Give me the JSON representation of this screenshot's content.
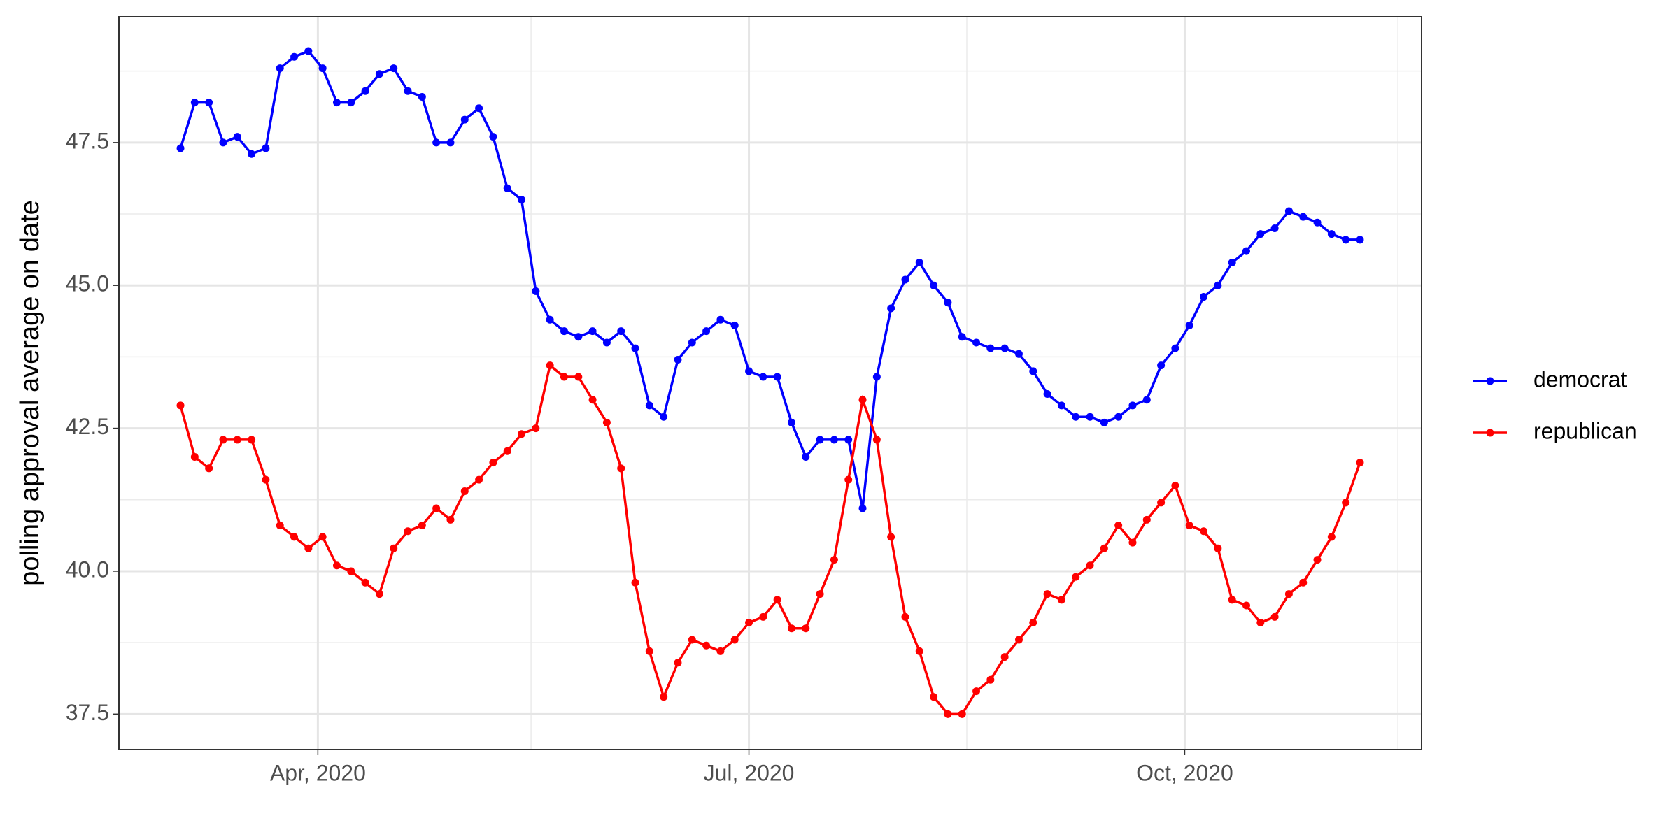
{
  "chart_data": {
    "type": "line",
    "ylabel": "polling approval average on date",
    "x": [
      "2020-03-03",
      "2020-03-06",
      "2020-03-09",
      "2020-03-12",
      "2020-03-15",
      "2020-03-18",
      "2020-03-21",
      "2020-03-24",
      "2020-03-27",
      "2020-03-30",
      "2020-04-02",
      "2020-04-05",
      "2020-04-08",
      "2020-04-11",
      "2020-04-14",
      "2020-04-17",
      "2020-04-20",
      "2020-04-23",
      "2020-04-26",
      "2020-04-29",
      "2020-05-02",
      "2020-05-05",
      "2020-05-08",
      "2020-05-11",
      "2020-05-14",
      "2020-05-17",
      "2020-05-20",
      "2020-05-23",
      "2020-05-26",
      "2020-05-29",
      "2020-06-01",
      "2020-06-04",
      "2020-06-07",
      "2020-06-10",
      "2020-06-13",
      "2020-06-16",
      "2020-06-19",
      "2020-06-22",
      "2020-06-25",
      "2020-06-28",
      "2020-07-01",
      "2020-07-04",
      "2020-07-07",
      "2020-07-10",
      "2020-07-13",
      "2020-07-16",
      "2020-07-19",
      "2020-07-22",
      "2020-07-25",
      "2020-07-28",
      "2020-07-31",
      "2020-08-03",
      "2020-08-06",
      "2020-08-09",
      "2020-08-12",
      "2020-08-15",
      "2020-08-18",
      "2020-08-21",
      "2020-08-24",
      "2020-08-27",
      "2020-08-30",
      "2020-09-02",
      "2020-09-05",
      "2020-09-08",
      "2020-09-11",
      "2020-09-14",
      "2020-09-17",
      "2020-09-20",
      "2020-09-23",
      "2020-09-26",
      "2020-09-29",
      "2020-10-02",
      "2020-10-05",
      "2020-10-08",
      "2020-10-11",
      "2020-10-14",
      "2020-10-17",
      "2020-10-20",
      "2020-10-23",
      "2020-10-26",
      "2020-10-29",
      "2020-11-01",
      "2020-11-04",
      "2020-11-07"
    ],
    "series": [
      {
        "name": "democrat",
        "color": "#0000ff",
        "values": [
          47.4,
          48.2,
          48.2,
          47.5,
          47.6,
          47.3,
          47.4,
          48.8,
          49.0,
          49.1,
          48.8,
          48.2,
          48.2,
          48.4,
          48.7,
          48.8,
          48.4,
          48.3,
          47.5,
          47.5,
          47.9,
          48.1,
          47.6,
          46.7,
          46.5,
          44.9,
          44.4,
          44.2,
          44.1,
          44.2,
          44.0,
          44.2,
          43.9,
          42.9,
          42.7,
          43.7,
          44.0,
          44.2,
          44.4,
          44.3,
          43.5,
          43.4,
          43.4,
          42.6,
          42.0,
          42.3,
          42.3,
          42.3,
          41.1,
          43.4,
          44.6,
          45.1,
          45.4,
          45.0,
          44.7,
          44.1,
          44.0,
          43.9,
          43.9,
          43.8,
          43.5,
          43.1,
          42.9,
          42.7,
          42.7,
          42.6,
          42.7,
          42.9,
          43.0,
          43.6,
          43.9,
          44.3,
          44.8,
          45.0,
          45.4,
          45.6,
          45.9,
          46.0,
          46.3,
          46.2,
          46.1,
          45.9,
          45.8,
          45.8
        ]
      },
      {
        "name": "republican",
        "color": "#ff0000",
        "values": [
          42.9,
          42.0,
          41.8,
          42.3,
          42.3,
          42.3,
          41.6,
          40.8,
          40.6,
          40.4,
          40.6,
          40.1,
          40.0,
          39.8,
          39.6,
          40.4,
          40.7,
          40.8,
          41.1,
          40.9,
          41.4,
          41.6,
          41.9,
          42.1,
          42.4,
          42.5,
          43.6,
          43.4,
          43.4,
          43.0,
          42.6,
          41.8,
          39.8,
          38.6,
          37.8,
          38.4,
          38.8,
          38.7,
          38.6,
          38.8,
          39.1,
          39.2,
          39.5,
          39.0,
          39.0,
          39.6,
          40.2,
          41.6,
          43.0,
          42.3,
          40.6,
          39.2,
          38.6,
          37.8,
          37.5,
          37.5,
          37.9,
          38.1,
          38.5,
          38.8,
          39.1,
          39.6,
          39.5,
          39.9,
          40.1,
          40.4,
          40.8,
          40.5,
          40.9,
          41.2,
          41.5,
          40.8,
          40.7,
          40.4,
          39.5,
          39.4,
          39.1,
          39.2,
          39.6,
          39.8,
          40.2,
          40.6,
          41.2,
          41.9
        ]
      }
    ],
    "xlim": [
      "2020-02-19",
      "2020-11-20"
    ],
    "xticks": [
      {
        "value": "2020-04-01",
        "label": "Apr, 2020"
      },
      {
        "value": "2020-07-01",
        "label": "Jul, 2020"
      },
      {
        "value": "2020-10-01",
        "label": "Oct, 2020"
      }
    ],
    "xminor": [
      "2020-05-16",
      "2020-08-16",
      "2020-11-15"
    ],
    "ylim": [
      36.88,
      49.7
    ],
    "yticks": [
      {
        "value": 37.5,
        "label": "37.5"
      },
      {
        "value": 40,
        "label": "40.0"
      },
      {
        "value": 42.5,
        "label": "42.5"
      },
      {
        "value": 45,
        "label": "45.0"
      },
      {
        "value": 47.5,
        "label": "47.5"
      }
    ],
    "yminor": [
      38.75,
      41.25,
      43.75,
      46.25,
      48.75
    ],
    "grid": true,
    "legend": "right"
  }
}
